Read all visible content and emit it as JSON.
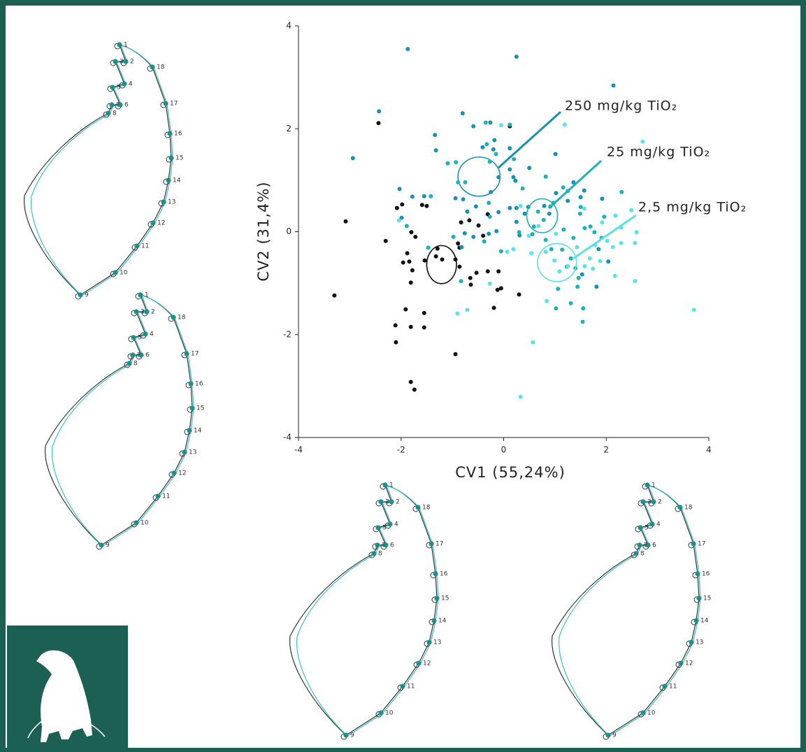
{
  "chart_data": {
    "type": "scatter",
    "xlabel": "CV1 (55,24%)",
    "ylabel": "CV2 (31,4%)",
    "xlim": [
      -4,
      4
    ],
    "ylim": [
      -4,
      4
    ],
    "xticks": [
      -4,
      -2,
      0,
      2,
      4
    ],
    "yticks": [
      -4,
      -2,
      0,
      2,
      4
    ],
    "series": [
      {
        "color": "#111111",
        "x": [
          -3.3,
          -3.08,
          -2.3,
          -2.44,
          -2.08,
          -1.98,
          -1.59,
          -1.5,
          -1.8,
          -1.72,
          -1.88,
          -1.84,
          -1.78,
          -1.96,
          -1.81,
          -1.54,
          -1.29,
          -1.2,
          -0.94,
          -0.86,
          -0.89,
          -0.67,
          -0.49,
          -0.4,
          -0.31,
          -0.1,
          -0.05,
          -0.12,
          0.12,
          0.3,
          -0.19,
          -0.53,
          -0.65,
          -0.64,
          -0.86,
          -1.91,
          -2.11,
          -2.1,
          -1.81,
          -1.55,
          -1.55,
          -0.94,
          -1.81,
          -1.74,
          -0.83,
          -1.32,
          -0.31
        ],
        "values": [
          -1.24,
          0.2,
          -0.18,
          2.11,
          0.46,
          0.53,
          0.52,
          0.5,
          -0.01,
          -0.1,
          -0.42,
          -0.58,
          -0.75,
          -0.6,
          -0.99,
          -0.56,
          -0.33,
          -0.54,
          -0.54,
          -0.31,
          -0.23,
          0.22,
          0.12,
          -0.08,
          0.34,
          -0.77,
          -1.1,
          -1.13,
          2.05,
          -1.22,
          -1.48,
          -0.8,
          -0.9,
          -1.03,
          -0.68,
          -1.51,
          -1.82,
          -2.15,
          -1.85,
          -1.58,
          -1.86,
          -2.38,
          -2.92,
          -3.07,
          0.18,
          -0.48,
          -0.77
        ],
        "ellipse": {
          "center": [
            -1.21,
            -0.64
          ],
          "radii": [
            0.29,
            0.37
          ]
        }
      },
      {
        "name": "250 mg/kg TiO₂",
        "color": "#1a8fb5",
        "x": [
          -1.87,
          -2.43,
          -2.94,
          -2.03,
          -1.99,
          -1.78,
          -1.55,
          -1.34,
          -1.32,
          -0.8,
          -0.59,
          -0.41,
          -0.2,
          -0.26,
          -0.18,
          0.12,
          0.12,
          0.19,
          0.23,
          -0.1,
          -0.25,
          -0.79,
          -0.94,
          -0.71,
          -0.1,
          0.12,
          0.25,
          0.31,
          0.41,
          0.48,
          -0.14,
          0.25,
          -0.29,
          -0.54,
          -0.76,
          -0.59,
          0.25,
          2.14,
          1.01,
          0.5,
          1.02,
          1.25,
          1.5,
          1.92,
          1.85,
          2.04,
          1.53,
          1.81,
          0.79,
          0.89,
          1.36,
          1.57,
          -0.82
        ],
        "values": [
          3.55,
          2.34,
          1.43,
          0.83,
          0.27,
          0.68,
          0.69,
          1.88,
          1.58,
          2.3,
          2.05,
          1.64,
          1.6,
          2.12,
          1.78,
          1.62,
          1.21,
          1.06,
          0.99,
          1.06,
          0.77,
          0.63,
          0.65,
          0.39,
          0.38,
          0.46,
          0.46,
          -0.07,
          0.35,
          0.48,
          0.01,
          0.19,
          -0.04,
          0.49,
          -0.03,
          -0.1,
          3.4,
          2.84,
          1.51,
          1.24,
          0.75,
          0.6,
          0.67,
          0.64,
          -0.34,
          -0.58,
          -0.83,
          -1.07,
          0.5,
          0.35,
          0.96,
          0.8,
          -0.3
        ],
        "ellipse": {
          "center": [
            -0.48,
            1.07
          ],
          "radii": [
            0.41,
            0.38
          ]
        }
      },
      {
        "name": "25 mg/kg TiO₂",
        "color": "#1fb0b8",
        "x": [
          -1.42,
          -1.89,
          -1.47,
          -0.98,
          -0.35,
          -0.33,
          -0.75,
          0.12,
          0.37,
          0.59,
          0.67,
          0.78,
          0.91,
          0.97,
          1.25,
          1.17,
          1.36,
          1.49,
          1.69,
          1.58,
          1.77,
          0.93,
          1.14,
          1.31,
          1.4,
          1.46,
          1.44,
          1.06,
          1.02,
          1.55,
          1.31,
          1.54,
          1.23,
          1.96,
          2.3,
          1.91,
          0.82,
          0.56,
          -0.27,
          -0.38,
          -0.29,
          -1.09,
          -0.93,
          -0.27,
          -0.15,
          0.2,
          0.82,
          1.16,
          1.5,
          -0.89,
          -0.83,
          -0.05,
          0.3
        ],
        "values": [
          0.69,
          0.11,
          -0.31,
          -0.1,
          2.12,
          1.7,
          0.96,
          2.08,
          0.84,
          0.1,
          0.39,
          0.23,
          0.49,
          0.56,
          0.79,
          0.04,
          -0.12,
          0.35,
          0.1,
          0.07,
          -0.01,
          -0.34,
          -0.35,
          -0.52,
          -0.71,
          -0.9,
          -1.07,
          -1.11,
          -1.49,
          -1.49,
          -1.39,
          -1.75,
          -0.68,
          0.29,
          0.77,
          -0.12,
          -0.16,
          -0.05,
          0.29,
          -0.19,
          0.56,
          1.33,
          1.35,
          1.36,
          1.51,
          1.41,
          1.07,
          0.86,
          0.48,
          0.96,
          -0.96,
          -0.38,
          -0.01
        ],
        "ellipse": {
          "center": [
            0.75,
            0.31
          ],
          "radii": [
            0.3,
            0.33
          ]
        }
      },
      {
        "name": "2,5 mg/kg TiO₂",
        "color": "#5fe0e6",
        "x": [
          -2.04,
          -0.9,
          -0.71,
          -0.05,
          0.33,
          0.49,
          0.54,
          0.82,
          1.02,
          1.09,
          1.25,
          1.43,
          1.68,
          1.88,
          1.74,
          2.02,
          2.13,
          2.29,
          2.56,
          2.59,
          2.49,
          2.18,
          1.78,
          0.57,
          0.33,
          3.71,
          2.71,
          1.19,
          2.17,
          2.56,
          1.58,
          0.99,
          0.68,
          0.07,
          0.19,
          -0.27,
          0.84,
          1.57,
          1.92,
          2.29
        ],
        "values": [
          0.22,
          -1.59,
          -1.52,
          2.07,
          0.5,
          -0.08,
          -0.42,
          -0.39,
          -0.04,
          -0.77,
          -0.67,
          -0.3,
          -0.52,
          -0.57,
          -0.72,
          -0.18,
          -0.3,
          -0.22,
          -0.22,
          -0.01,
          0.42,
          0.31,
          -0.26,
          -2.15,
          -3.21,
          -1.52,
          1.75,
          2.08,
          -0.86,
          -0.96,
          -0.67,
          -0.56,
          0.11,
          -0.39,
          -0.34,
          -1.01,
          -1.35,
          0.45,
          0.18,
          0.08
        ],
        "ellipse": {
          "center": [
            1.04,
            -0.6
          ],
          "radii": [
            0.38,
            0.37
          ]
        }
      }
    ]
  },
  "wing_landmarks": [
    1,
    2,
    3,
    4,
    5,
    6,
    7,
    8,
    9,
    10,
    11,
    12,
    13,
    14,
    15,
    16,
    17,
    18
  ]
}
